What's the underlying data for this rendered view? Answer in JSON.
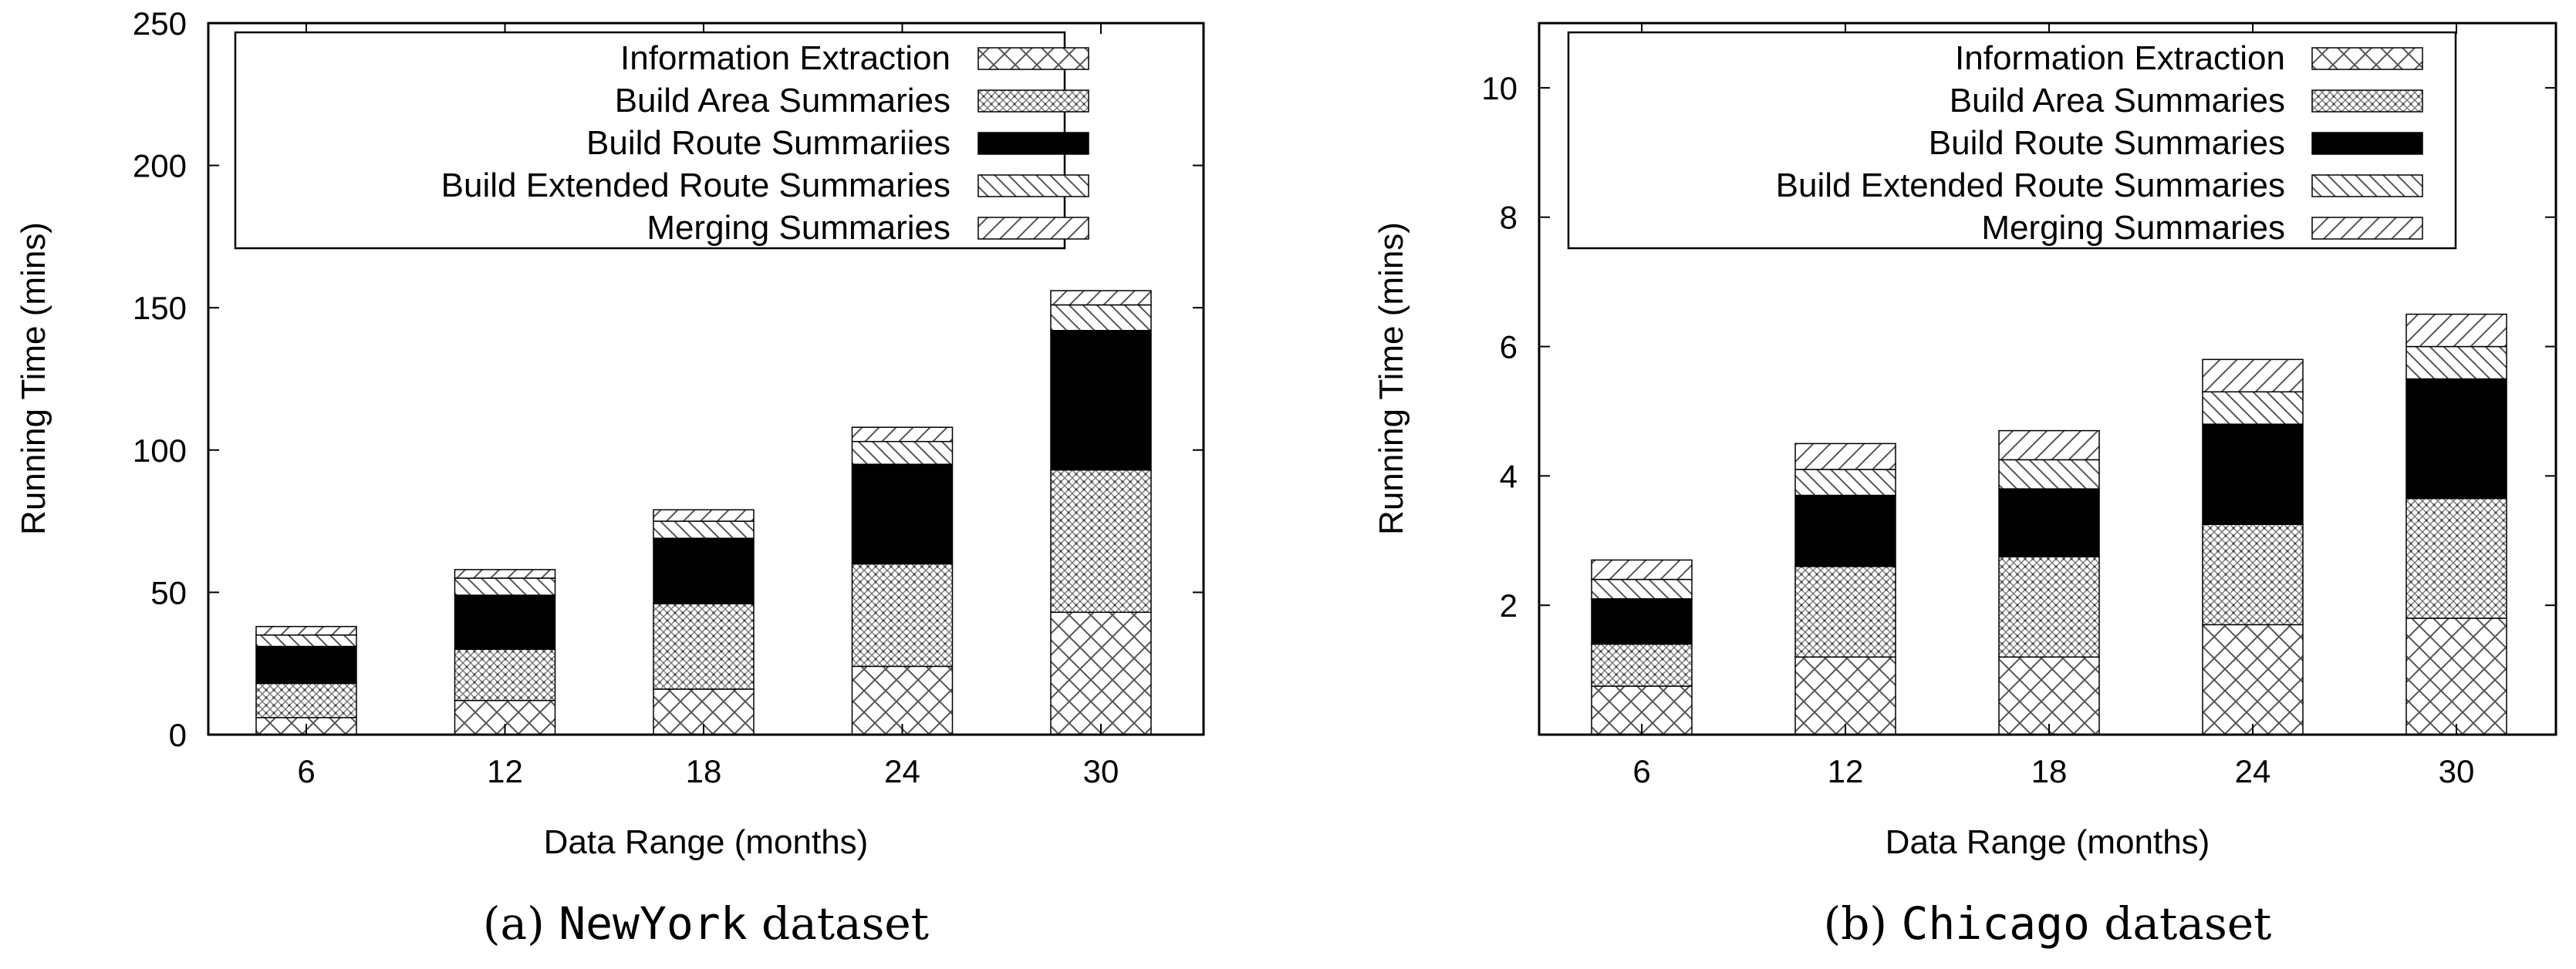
{
  "chart_data": [
    {
      "type": "bar",
      "stacked": true,
      "xlabel": "Data Range (months)",
      "ylabel": "Running Time (mins)",
      "categories": [
        "6",
        "12",
        "18",
        "24",
        "30"
      ],
      "ylim": [
        0,
        250
      ],
      "yticks": [
        0,
        50,
        100,
        150,
        200,
        250
      ],
      "grid": false,
      "legend_position": "top",
      "series": [
        {
          "name": "Information Extraction",
          "pattern": "crosshatch",
          "values": [
            6,
            12,
            16,
            24,
            43
          ]
        },
        {
          "name": "Build Area Summaries",
          "pattern": "dots",
          "values": [
            12,
            18,
            30,
            36,
            50
          ]
        },
        {
          "name": "Build Route Summariies",
          "pattern": "solid",
          "values": [
            13,
            19,
            23,
            35,
            49
          ]
        },
        {
          "name": "Build Extended Route Summaries",
          "pattern": "backslash",
          "values": [
            4,
            6,
            6,
            8,
            9
          ]
        },
        {
          "name": "Merging Summaries",
          "pattern": "slash",
          "values": [
            3,
            3,
            4,
            5,
            5
          ]
        }
      ],
      "caption": {
        "label": "(a)",
        "dataset": "NewYork",
        "suffix": "dataset"
      }
    },
    {
      "type": "bar",
      "stacked": true,
      "xlabel": "Data Range (months)",
      "ylabel": "Running Time (mins)",
      "categories": [
        "6",
        "12",
        "18",
        "24",
        "30"
      ],
      "ylim": [
        0,
        11
      ],
      "yticks": [
        2,
        4,
        6,
        8,
        10
      ],
      "grid": false,
      "legend_position": "top",
      "series": [
        {
          "name": "Information Extraction",
          "pattern": "crosshatch",
          "values": [
            0.75,
            1.2,
            1.2,
            1.7,
            1.8
          ]
        },
        {
          "name": "Build Area Summaries",
          "pattern": "dots",
          "values": [
            0.65,
            1.4,
            1.55,
            1.55,
            1.85
          ]
        },
        {
          "name": "Build Route Summaries",
          "pattern": "solid",
          "values": [
            0.7,
            1.1,
            1.05,
            1.55,
            1.85
          ]
        },
        {
          "name": "Build Extended Route Summaries",
          "pattern": "backslash",
          "values": [
            0.3,
            0.4,
            0.45,
            0.5,
            0.5
          ]
        },
        {
          "name": "Merging Summaries",
          "pattern": "slash",
          "values": [
            0.3,
            0.4,
            0.45,
            0.5,
            0.5
          ]
        }
      ],
      "caption": {
        "label": "(b)",
        "dataset": "Chicago",
        "suffix": "dataset"
      }
    }
  ]
}
